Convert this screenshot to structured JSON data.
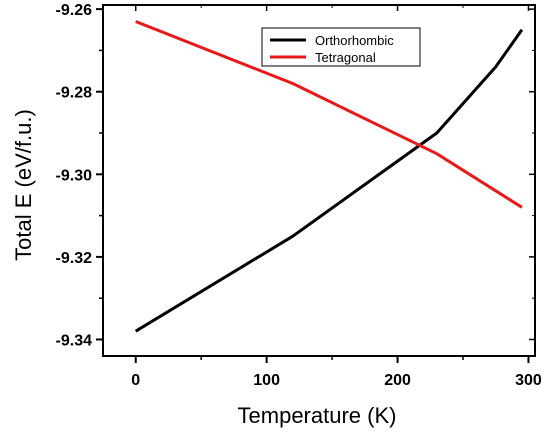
{
  "chart_data": {
    "type": "line",
    "title": "",
    "xlabel": "Temperature (K)",
    "ylabel": "Total E (eV/f.u.)",
    "xlim": [
      -25,
      305
    ],
    "ylim": [
      -9.344,
      -9.259
    ],
    "xticks": [
      0,
      100,
      200,
      300
    ],
    "xtick_labels": [
      "0",
      "100",
      "200",
      "300"
    ],
    "xminor": [
      50,
      150,
      250
    ],
    "yticks": [
      -9.34,
      -9.32,
      -9.3,
      -9.28,
      -9.26
    ],
    "ytick_labels": [
      "-9.34",
      "-9.32",
      "-9.30",
      "-9.28",
      "-9.26"
    ],
    "yminor": [
      -9.33,
      -9.31,
      -9.29,
      -9.27
    ],
    "grid": false,
    "legend_position": "top-center",
    "series": [
      {
        "name": "Orthorhombic",
        "color": "#000000",
        "x": [
          0,
          120,
          230,
          275,
          295
        ],
        "y": [
          -9.338,
          -9.315,
          -9.29,
          -9.274,
          -9.265
        ]
      },
      {
        "name": "Tetragonal",
        "color": "#e8191a",
        "x": [
          0,
          120,
          230,
          295
        ],
        "y": [
          -9.263,
          -9.278,
          -9.295,
          -9.308
        ]
      }
    ]
  }
}
